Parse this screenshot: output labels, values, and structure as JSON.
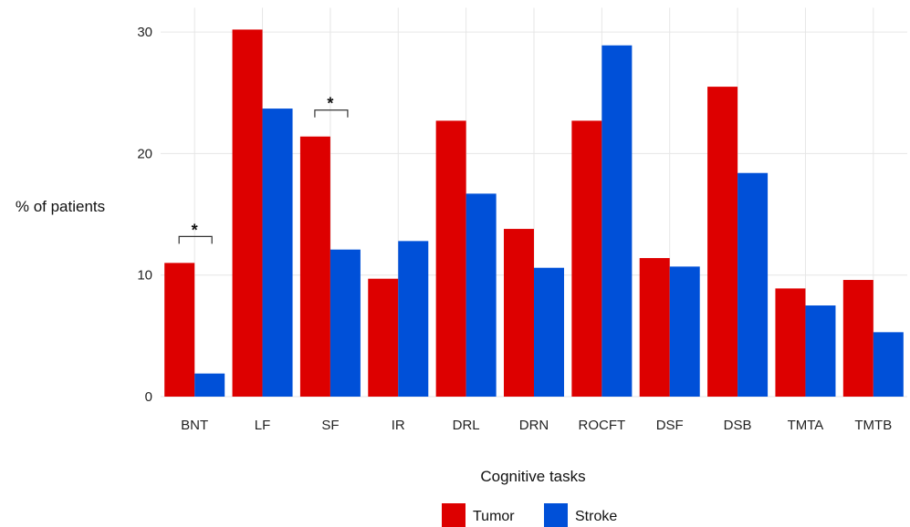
{
  "chart_data": {
    "type": "bar",
    "title": "",
    "xlabel": "Cognitive tasks",
    "ylabel": "% of patients",
    "ylim": [
      0,
      32
    ],
    "yticks": [
      0,
      10,
      20,
      30
    ],
    "grid": true,
    "legend_position": "bottom",
    "categories": [
      "BNT",
      "LF",
      "SF",
      "IR",
      "DRL",
      "DRN",
      "ROCFT",
      "DSF",
      "DSB",
      "TMTA",
      "TMTB"
    ],
    "series": [
      {
        "name": "Tumor",
        "color": "#dd0000",
        "values": [
          11.0,
          30.2,
          21.4,
          9.7,
          22.7,
          13.8,
          22.7,
          11.4,
          25.5,
          8.9,
          9.6
        ]
      },
      {
        "name": "Stroke",
        "color": "#0050d8",
        "values": [
          1.9,
          23.7,
          12.1,
          12.8,
          16.7,
          10.6,
          28.9,
          10.7,
          18.4,
          7.5,
          5.3
        ]
      }
    ],
    "annotations": [
      {
        "category": "BNT",
        "label": "*"
      },
      {
        "category": "SF",
        "label": "*"
      }
    ]
  }
}
